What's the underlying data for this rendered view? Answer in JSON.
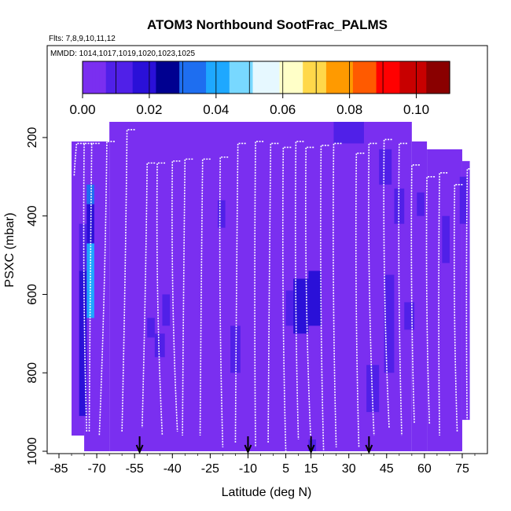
{
  "chart_data": {
    "type": "heatmap",
    "title": "ATOM3 Northbound SootFrac_PALMS",
    "subtitle_flights": "Flts: 7,8,9,10,11,12",
    "subtitle_dates": "MMDD: 1014,1017,1019,1020,1023,1025",
    "xlabel": "Latitude (deg N)",
    "ylabel": "PSXC (mbar)",
    "xlim": [
      -85,
      80
    ],
    "ylim": [
      1000,
      150
    ],
    "y_reversed": true,
    "x_ticks": [
      "-85",
      "-70",
      "-55",
      "-40",
      "-25",
      "-10",
      "5",
      "15",
      "30",
      "45",
      "60",
      "75"
    ],
    "y_ticks": [
      "200",
      "400",
      "600",
      "800",
      "1000"
    ],
    "colorbar": {
      "range": [
        0,
        0.11
      ],
      "tick_labels": [
        "0.00",
        "0.02",
        "0.04",
        "0.06",
        "0.08",
        "0.10"
      ],
      "colors": [
        "#7a2ff0",
        "#5020e8",
        "#2a10d8",
        "#000090",
        "#1e6ef0",
        "#1ea8ff",
        "#78d8ff",
        "#e6f8ff",
        "#ffffc8",
        "#ffd84a",
        "#ff9a00",
        "#ff5a00",
        "#ff0000",
        "#c80000",
        "#8a0000"
      ]
    },
    "background_value": 0.0,
    "cells": [
      {
        "x0": -74,
        "x1": -71,
        "p0": 320,
        "p1": 370,
        "v": 0.03
      },
      {
        "x0": -74,
        "x1": -71,
        "p0": 370,
        "p1": 470,
        "v": 0.02
      },
      {
        "x0": -74,
        "x1": -71,
        "p0": 470,
        "p1": 660,
        "v": 0.04
      },
      {
        "x0": -77,
        "x1": -74,
        "p0": 420,
        "p1": 540,
        "v": 0.01
      },
      {
        "x0": -77,
        "x1": -74,
        "p0": 540,
        "p1": 910,
        "v": 0.02
      },
      {
        "x0": -50,
        "x1": -47,
        "p0": 660,
        "p1": 710,
        "v": 0.01
      },
      {
        "x0": -47,
        "x1": -43,
        "p0": 700,
        "p1": 760,
        "v": 0.01
      },
      {
        "x0": -44,
        "x1": -41,
        "p0": 600,
        "p1": 680,
        "v": 0.01
      },
      {
        "x0": -17,
        "x1": -13,
        "p0": 680,
        "p1": 800,
        "v": 0.01
      },
      {
        "x0": -22,
        "x1": -19,
        "p0": 360,
        "p1": 430,
        "v": 0.01
      },
      {
        "x0": 5,
        "x1": 10,
        "p0": 590,
        "p1": 680,
        "v": 0.01
      },
      {
        "x0": 8,
        "x1": 14,
        "p0": 560,
        "p1": 700,
        "v": 0.02
      },
      {
        "x0": 14,
        "x1": 19,
        "p0": 540,
        "p1": 680,
        "v": 0.02
      },
      {
        "x0": 24,
        "x1": 36,
        "p0": 160,
        "p1": 215,
        "v": 0.01
      },
      {
        "x0": 37,
        "x1": 42,
        "p0": 780,
        "p1": 900,
        "v": 0.01
      },
      {
        "x0": 42,
        "x1": 47,
        "p0": 230,
        "p1": 320,
        "v": 0.01
      },
      {
        "x0": 44,
        "x1": 48,
        "p0": 550,
        "p1": 800,
        "v": 0.01
      },
      {
        "x0": 48,
        "x1": 52,
        "p0": 330,
        "p1": 420,
        "v": 0.01
      },
      {
        "x0": 52,
        "x1": 56,
        "p0": 620,
        "p1": 690,
        "v": 0.01
      },
      {
        "x0": 57,
        "x1": 60,
        "p0": 340,
        "p1": 400,
        "v": 0.01
      },
      {
        "x0": 67,
        "x1": 70,
        "p0": 400,
        "p1": 520,
        "v": 0.01
      },
      {
        "x0": 74,
        "x1": 77,
        "p0": 300,
        "p1": 420,
        "v": 0.01
      },
      {
        "x0": 14,
        "x1": 17,
        "p0": 970,
        "p1": 1000,
        "v": 0.01
      }
    ],
    "coverage": [
      {
        "x0": -80,
        "x1": -75,
        "p0": 210,
        "p1": 960
      },
      {
        "x0": -75,
        "x1": -65,
        "p0": 210,
        "p1": 1000
      },
      {
        "x0": -65,
        "x1": 55,
        "p0": 160,
        "p1": 1000
      },
      {
        "x0": 55,
        "x1": 61,
        "p0": 210,
        "p1": 1000
      },
      {
        "x0": 61,
        "x1": 75,
        "p0": 230,
        "p1": 1000
      },
      {
        "x0": 75,
        "x1": 78,
        "p0": 260,
        "p1": 920
      }
    ],
    "arrows_latitude": [
      -53,
      -10,
      15,
      38
    ],
    "profiles": [
      {
        "x_top": -78,
        "x_bot": -79,
        "p_top": 215,
        "p_bot": 300
      },
      {
        "x_top": -75,
        "x_bot": -74,
        "p_top": 215,
        "p_bot": 950
      },
      {
        "x_top": -72,
        "x_bot": -73,
        "p_top": 215,
        "p_bot": 950
      },
      {
        "x_top": -66,
        "x_bot": -69,
        "p_top": 210,
        "p_bot": 960
      },
      {
        "x_top": -58,
        "x_bot": -60,
        "p_top": 180,
        "p_bot": 950
      },
      {
        "x_top": -50,
        "x_bot": -52,
        "p_top": 265,
        "p_bot": 940
      },
      {
        "x_top": -46,
        "x_bot": -44,
        "p_top": 265,
        "p_bot": 960
      },
      {
        "x_top": -40,
        "x_bot": -38,
        "p_top": 260,
        "p_bot": 950
      },
      {
        "x_top": -35,
        "x_bot": -36,
        "p_top": 255,
        "p_bot": 960
      },
      {
        "x_top": -28,
        "x_bot": -29,
        "p_top": 255,
        "p_bot": 960
      },
      {
        "x_top": -21,
        "x_bot": -20,
        "p_top": 250,
        "p_bot": 990
      },
      {
        "x_top": -14,
        "x_bot": -15,
        "p_top": 215,
        "p_bot": 980
      },
      {
        "x_top": -7,
        "x_bot": -7,
        "p_top": 210,
        "p_bot": 990
      },
      {
        "x_top": -1,
        "x_bot": -2,
        "p_top": 215,
        "p_bot": 980
      },
      {
        "x_top": 4,
        "x_bot": 5,
        "p_top": 225,
        "p_bot": 1000
      },
      {
        "x_top": 9,
        "x_bot": 10,
        "p_top": 210,
        "p_bot": 970
      },
      {
        "x_top": 13,
        "x_bot": 15,
        "p_top": 225,
        "p_bot": 985
      },
      {
        "x_top": 19,
        "x_bot": 20,
        "p_top": 220,
        "p_bot": 1000
      },
      {
        "x_top": 24,
        "x_bot": 25,
        "p_top": 215,
        "p_bot": 990
      },
      {
        "x_top": 33,
        "x_bot": 34,
        "p_top": 240,
        "p_bot": 990
      },
      {
        "x_top": 38,
        "x_bot": 40,
        "p_top": 215,
        "p_bot": 960
      },
      {
        "x_top": 44,
        "x_bot": 46,
        "p_top": 205,
        "p_bot": 940
      },
      {
        "x_top": 50,
        "x_bot": 51,
        "p_top": 215,
        "p_bot": 960
      },
      {
        "x_top": 55,
        "x_bot": 56,
        "p_top": 270,
        "p_bot": 930
      },
      {
        "x_top": 61,
        "x_bot": 62,
        "p_top": 300,
        "p_bot": 930
      },
      {
        "x_top": 66,
        "x_bot": 66,
        "p_top": 290,
        "p_bot": 960
      },
      {
        "x_top": 72,
        "x_bot": 73,
        "p_top": 320,
        "p_bot": 950
      },
      {
        "x_top": 77,
        "x_bot": 77,
        "p_top": 280,
        "p_bot": 960
      }
    ]
  }
}
